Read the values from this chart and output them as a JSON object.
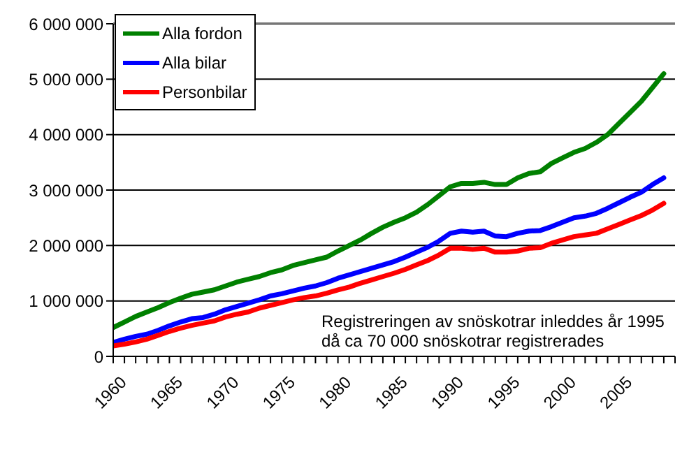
{
  "chart_data": {
    "type": "line",
    "x": [
      1960,
      1961,
      1962,
      1963,
      1964,
      1965,
      1966,
      1967,
      1968,
      1969,
      1970,
      1971,
      1972,
      1973,
      1974,
      1975,
      1976,
      1977,
      1978,
      1979,
      1980,
      1981,
      1982,
      1983,
      1984,
      1985,
      1986,
      1987,
      1988,
      1989,
      1990,
      1991,
      1992,
      1993,
      1994,
      1995,
      1996,
      1997,
      1998,
      1999,
      2000,
      2001,
      2002,
      2003,
      2004,
      2005,
      2006,
      2007,
      2008,
      2009
    ],
    "series": [
      {
        "name": "Alla fordon",
        "color": "#008000",
        "values": [
          520000,
          620000,
          720000,
          800000,
          880000,
          970000,
          1050000,
          1120000,
          1160000,
          1200000,
          1270000,
          1340000,
          1390000,
          1440000,
          1510000,
          1560000,
          1640000,
          1690000,
          1740000,
          1790000,
          1900000,
          2000000,
          2100000,
          2220000,
          2330000,
          2420000,
          2500000,
          2600000,
          2740000,
          2900000,
          3060000,
          3120000,
          3120000,
          3140000,
          3100000,
          3100000,
          3220000,
          3300000,
          3330000,
          3480000,
          3580000,
          3680000,
          3750000,
          3860000,
          4000000,
          4200000,
          4400000,
          4600000,
          4850000,
          5100000
        ]
      },
      {
        "name": "Alla bilar",
        "color": "#0000ff",
        "values": [
          250000,
          310000,
          360000,
          400000,
          470000,
          550000,
          620000,
          680000,
          700000,
          760000,
          840000,
          900000,
          960000,
          1020000,
          1090000,
          1130000,
          1180000,
          1230000,
          1270000,
          1330000,
          1410000,
          1470000,
          1530000,
          1590000,
          1650000,
          1710000,
          1790000,
          1880000,
          1970000,
          2080000,
          2220000,
          2260000,
          2240000,
          2260000,
          2170000,
          2160000,
          2220000,
          2260000,
          2270000,
          2340000,
          2420000,
          2500000,
          2530000,
          2580000,
          2670000,
          2770000,
          2870000,
          2960000,
          3100000,
          3220000
        ]
      },
      {
        "name": "Personbilar",
        "color": "#ff0000",
        "values": [
          190000,
          220000,
          260000,
          310000,
          380000,
          450000,
          510000,
          560000,
          600000,
          640000,
          710000,
          760000,
          800000,
          870000,
          920000,
          970000,
          1020000,
          1060000,
          1090000,
          1140000,
          1200000,
          1250000,
          1320000,
          1380000,
          1440000,
          1500000,
          1570000,
          1650000,
          1730000,
          1830000,
          1950000,
          1950000,
          1930000,
          1950000,
          1880000,
          1880000,
          1900000,
          1950000,
          1960000,
          2040000,
          2100000,
          2160000,
          2190000,
          2220000,
          2300000,
          2380000,
          2460000,
          2540000,
          2640000,
          2760000
        ]
      }
    ],
    "xlim": [
      1960,
      2010
    ],
    "xticks": [
      1960,
      {
        "value": 1961,
        "label": null
      },
      {
        "value": 1962,
        "label": null
      },
      {
        "value": 1963,
        "label": null
      },
      {
        "value": 1964,
        "label": null
      },
      1965,
      {
        "value": 1966,
        "label": null
      },
      {
        "value": 1967,
        "label": null
      },
      {
        "value": 1968,
        "label": null
      },
      {
        "value": 1969,
        "label": null
      },
      1970,
      {
        "value": 1971,
        "label": null
      },
      {
        "value": 1972,
        "label": null
      },
      {
        "value": 1973,
        "label": null
      },
      {
        "value": 1974,
        "label": null
      },
      1975,
      {
        "value": 1976,
        "label": null
      },
      {
        "value": 1977,
        "label": null
      },
      {
        "value": 1978,
        "label": null
      },
      {
        "value": 1979,
        "label": null
      },
      1980,
      {
        "value": 1981,
        "label": null
      },
      {
        "value": 1982,
        "label": null
      },
      {
        "value": 1983,
        "label": null
      },
      {
        "value": 1984,
        "label": null
      },
      1985,
      {
        "value": 1986,
        "label": null
      },
      {
        "value": 1987,
        "label": null
      },
      {
        "value": 1988,
        "label": null
      },
      {
        "value": 1989,
        "label": null
      },
      1990,
      {
        "value": 1991,
        "label": null
      },
      {
        "value": 1992,
        "label": null
      },
      {
        "value": 1993,
        "label": null
      },
      {
        "value": 1994,
        "label": null
      },
      1995,
      {
        "value": 1996,
        "label": null
      },
      {
        "value": 1997,
        "label": null
      },
      {
        "value": 1998,
        "label": null
      },
      {
        "value": 1999,
        "label": null
      },
      2000,
      {
        "value": 2001,
        "label": null
      },
      {
        "value": 2002,
        "label": null
      },
      {
        "value": 2003,
        "label": null
      },
      {
        "value": 2004,
        "label": null
      },
      2005,
      {
        "value": 2006,
        "label": null
      },
      {
        "value": 2007,
        "label": null
      },
      {
        "value": 2008,
        "label": null
      },
      {
        "value": 2009,
        "label": null
      },
      {
        "value": 2010,
        "label": null
      }
    ],
    "ylim": [
      0,
      6000000
    ],
    "yticks": [
      0,
      {
        "value": 1000000,
        "label": "1 000 000"
      },
      {
        "value": 2000000,
        "label": "2 000 000"
      },
      {
        "value": 3000000,
        "label": "3 000 000"
      },
      {
        "value": 4000000,
        "label": "4 000 000"
      },
      {
        "value": 5000000,
        "label": "5 000 000"
      },
      {
        "value": 6000000,
        "label": "6 000 000"
      }
    ],
    "grid": "y",
    "legend": "top left",
    "marker": "none",
    "line_style": "solid",
    "annotations": [
      "Registreringen av snöskotrar inleddes år 1995\ndå ca 70 000 snöskotrar registrerades"
    ]
  }
}
